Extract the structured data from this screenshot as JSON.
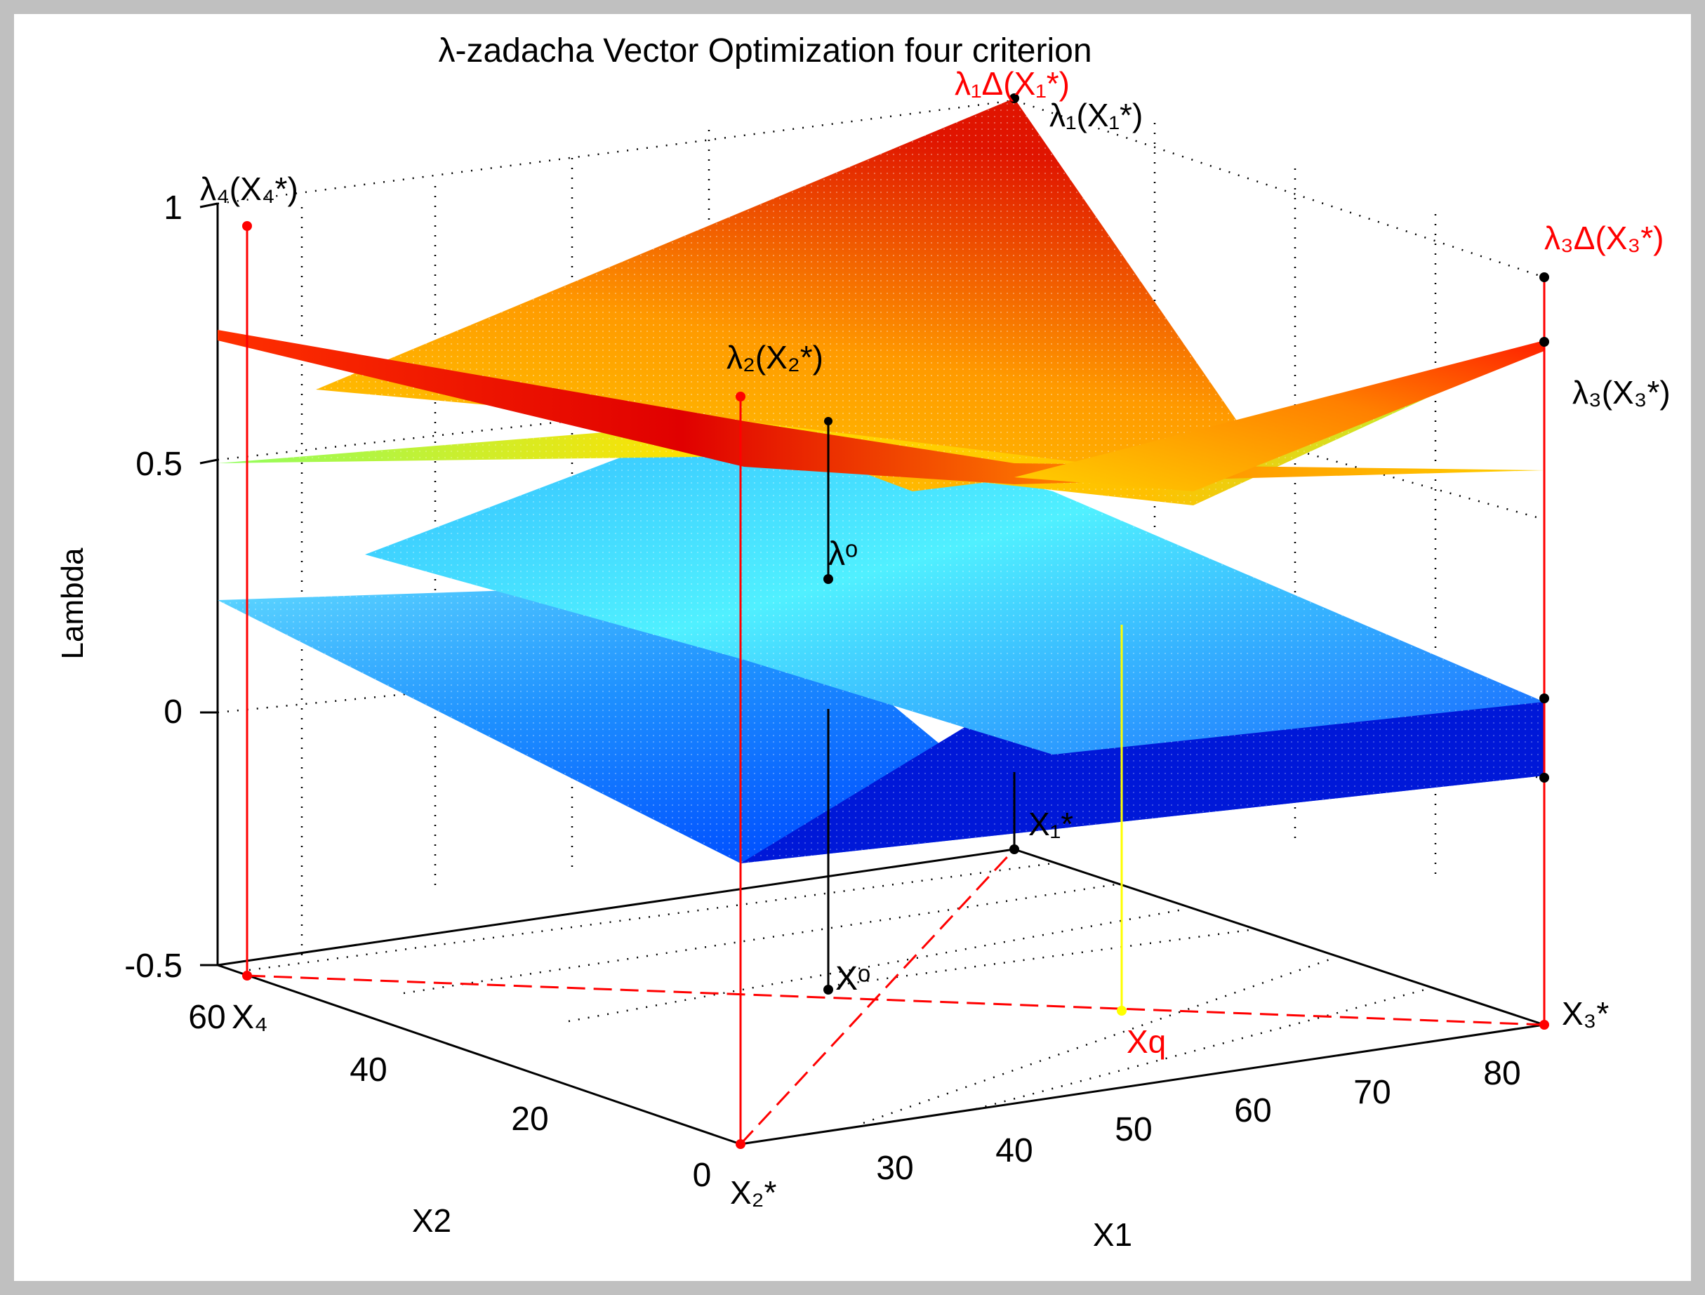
{
  "colors": {
    "figure_background": "#c0c0c0",
    "axes_background": "#ffffff",
    "annotation_red": "#ff0000",
    "annotation_black": "#000000",
    "connector_yellow": "#ffff00",
    "colormap": "jet"
  },
  "chart_data": {
    "type": "surface",
    "title": "λ-zadacha Vector Optimization four criterion",
    "xlabel": "X1",
    "ylabel": "X2",
    "zlabel": "Lambda",
    "xlim": [
      20,
      85
    ],
    "ylim": [
      0,
      65
    ],
    "zlim": [
      -0.5,
      1
    ],
    "x_ticks": [
      30,
      40,
      50,
      60,
      70,
      80
    ],
    "y_ticks": [
      0,
      20,
      40,
      60
    ],
    "z_ticks": [
      -0.5,
      0,
      0.5,
      1
    ],
    "x_tick_labels": [
      "30",
      "40",
      "50",
      "60",
      "70",
      "80"
    ],
    "y_tick_labels": [
      "0",
      "20",
      "40",
      "60"
    ],
    "z_tick_labels": [
      "-0.5",
      "0",
      "0.5",
      "1"
    ],
    "grid": true,
    "grid_style": "dotted",
    "surfaces": [
      {
        "corners": {
          "x_min_y_min": 0.0,
          "x_min_y_max": 0.22,
          "x_max_y_min": -0.13,
          "x_max_y_max": 0.02
        }
      },
      {
        "corners": {
          "x_min_y_min": 0.0,
          "x_min_y_max": 0.78,
          "x_max_y_min": 0.85,
          "x_max_y_max": 0.86
        }
      },
      {
        "corners": {
          "x_min_y_min": 0.45,
          "x_min_y_max": 0.48,
          "x_max_y_min": 1.0,
          "x_max_y_max": 0.42
        }
      },
      {
        "corners": {
          "x_min_y_min": 0.5,
          "x_min_y_max": 1.0,
          "x_max_y_min": 0.38,
          "x_max_y_max": 0.35
        }
      }
    ],
    "points": [
      {
        "name": "X1*",
        "x": 20,
        "y": 65,
        "lambda": 1.0
      },
      {
        "name": "X2*",
        "x": 20,
        "y": 0,
        "lambda": 0.55
      },
      {
        "name": "X3*",
        "x": 85,
        "y": 0,
        "lambda": 0.88
      },
      {
        "name": "X4*",
        "x": 20,
        "y": 62,
        "lambda": 1.0
      },
      {
        "name": "Xo",
        "x": 42,
        "y": 25,
        "lambda": 0.36
      },
      {
        "name": "Xq",
        "x": 60,
        "y": 15,
        "lambda": 0.3
      }
    ],
    "annotations": {
      "lambda1_delta": "λ₁Δ(X₁*)",
      "lambda1_star": "λ₁(X₁*)",
      "lambda2_star": "λ₂(X₂*)",
      "lambda3_delta": "λ₃Δ(X₃*)",
      "lambda3_star": "λ₃(X₃*)",
      "lambda4_star": "λ₄(X₄*)",
      "lambda_o": "λᵒ",
      "x1_star": "X₁*",
      "x2_star": "X₂*",
      "x3_star": "X₃*",
      "x4": "X₄",
      "xo": "Xᵒ",
      "xq": "Xq"
    }
  }
}
